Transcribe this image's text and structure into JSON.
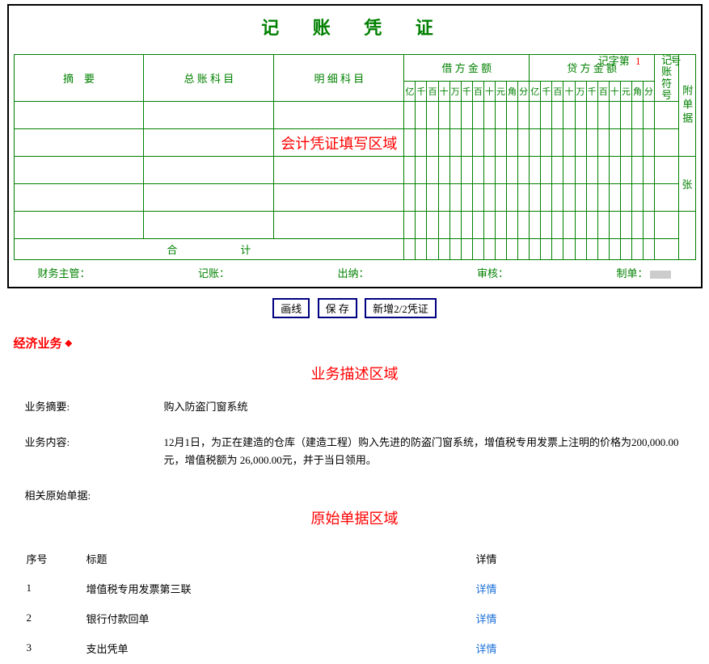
{
  "voucher": {
    "title": "记 账 凭 证",
    "header_prefix": "记字第",
    "header_number": "1",
    "header_suffix": "号",
    "col_summary": "摘　要",
    "col_ledger": "总 账 科 目",
    "col_detail": "明 细 科 目",
    "col_debit": "借 方 金 额",
    "col_credit": "贷 方 金 额",
    "col_mark": "记账符号",
    "col_attach_top": "附单据",
    "col_attach_bottom": "张",
    "digit_labels": [
      "亿",
      "千",
      "百",
      "十",
      "万",
      "千",
      "百",
      "十",
      "元",
      "角",
      "分"
    ],
    "total_label": "合　　　　　　计",
    "annotation": "会计凭证填写区域",
    "sig_supervisor": "财务主管：",
    "sig_bookkeeper": "记账：",
    "sig_cashier": "出纳：",
    "sig_auditor": "审核：",
    "sig_preparer": "制单："
  },
  "buttons": {
    "drawline": "画线",
    "save": "保 存",
    "add": "新增2/2凭证"
  },
  "business": {
    "section_label": "经济业务",
    "annotation": "业务描述区域",
    "summary_label": "业务摘要:",
    "summary_value": "购入防盗门窗系统",
    "content_label": "业务内容:",
    "content_value": "12月1日，为正在建造的仓库（建造工程）购入先进的防盗门窗系统，增值税专用发票上注明的价格为200,000.00元，增值税额为 26,000.00元，并于当日领用。",
    "docs_label": "相关原始单据:",
    "docs_annotation": "原始单据区域",
    "col_num": "序号",
    "col_title": "标题",
    "col_detail": "详情",
    "link_text": "详情",
    "docs": [
      {
        "num": "1",
        "title": "增值税专用发票第三联"
      },
      {
        "num": "2",
        "title": "银行付款回单"
      },
      {
        "num": "3",
        "title": "支出凭单"
      }
    ]
  },
  "style": {
    "green": "#008000",
    "red": "#ff0000",
    "border_outer": "#000000",
    "button_border": "#000080",
    "link_color": "#1a6fd8",
    "digit_cols": 11,
    "data_rows": 5
  }
}
